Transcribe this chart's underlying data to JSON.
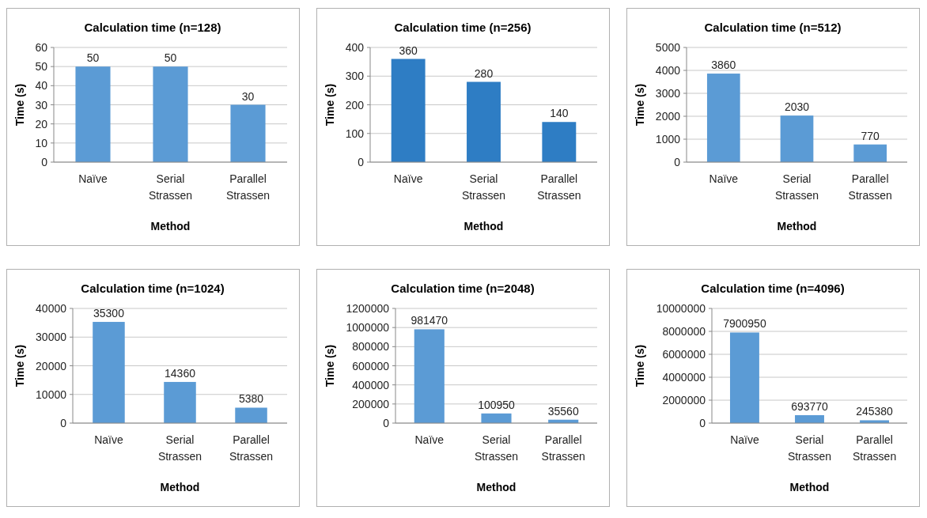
{
  "chart_data": [
    {
      "type": "bar",
      "title": "Calculation time (n=128)",
      "xlabel": "Method",
      "ylabel": "Time (s)",
      "categories": [
        "Naïve",
        "Serial Strassen",
        "Parallel Strassen"
      ],
      "values": [
        50,
        50,
        30
      ],
      "color": "#5b9bd5",
      "ylim": [
        0,
        60
      ],
      "yticks": [
        0,
        10,
        20,
        30,
        40,
        50,
        60
      ],
      "grid": "y",
      "data_labels": true
    },
    {
      "type": "bar",
      "title": "Calculation time (n=256)",
      "xlabel": "Method",
      "ylabel": "Time (s)",
      "categories": [
        "Naïve",
        "Serial Strassen",
        "Parallel Strassen"
      ],
      "values": [
        360,
        280,
        140
      ],
      "color": "#2e7dc4",
      "ylim": [
        0,
        400
      ],
      "yticks": [
        0,
        100,
        200,
        300,
        400
      ],
      "grid": "y",
      "data_labels": true
    },
    {
      "type": "bar",
      "title": "Calculation time (n=512)",
      "xlabel": "Method",
      "ylabel": "Time (s)",
      "categories": [
        "Naïve",
        "Serial Strassen",
        "Parallel Strassen"
      ],
      "values": [
        3860,
        2030,
        770
      ],
      "color": "#5b9bd5",
      "ylim": [
        0,
        5000
      ],
      "yticks": [
        0,
        1000,
        2000,
        3000,
        4000,
        5000
      ],
      "grid": "y",
      "data_labels": true
    },
    {
      "type": "bar",
      "title": "Calculation time (n=1024)",
      "xlabel": "Method",
      "ylabel": "Time (s)",
      "categories": [
        "Naïve",
        "Serial Strassen",
        "Parallel Strassen"
      ],
      "values": [
        35300,
        14360,
        5380
      ],
      "color": "#5b9bd5",
      "ylim": [
        0,
        40000
      ],
      "yticks": [
        0,
        10000,
        20000,
        30000,
        40000
      ],
      "grid": "y",
      "data_labels": true
    },
    {
      "type": "bar",
      "title": "Calculation time (n=2048)",
      "xlabel": "Method",
      "ylabel": "Time (s)",
      "categories": [
        "Naïve",
        "Serial Strassen",
        "Parallel Strassen"
      ],
      "values": [
        981470,
        100950,
        35560
      ],
      "color": "#5b9bd5",
      "ylim": [
        0,
        1200000
      ],
      "yticks": [
        0,
        200000,
        400000,
        600000,
        800000,
        1000000,
        1200000
      ],
      "grid": "y",
      "data_labels": true
    },
    {
      "type": "bar",
      "title": "Calculation time (n=4096)",
      "xlabel": "Method",
      "ylabel": "Time (s)",
      "categories": [
        "Naïve",
        "Serial Strassen",
        "Parallel Strassen"
      ],
      "values": [
        7900950,
        693770,
        245380
      ],
      "color": "#5b9bd5",
      "ylim": [
        0,
        10000000
      ],
      "yticks": [
        0,
        2000000,
        4000000,
        6000000,
        8000000,
        10000000
      ],
      "grid": "y",
      "data_labels": true
    }
  ]
}
